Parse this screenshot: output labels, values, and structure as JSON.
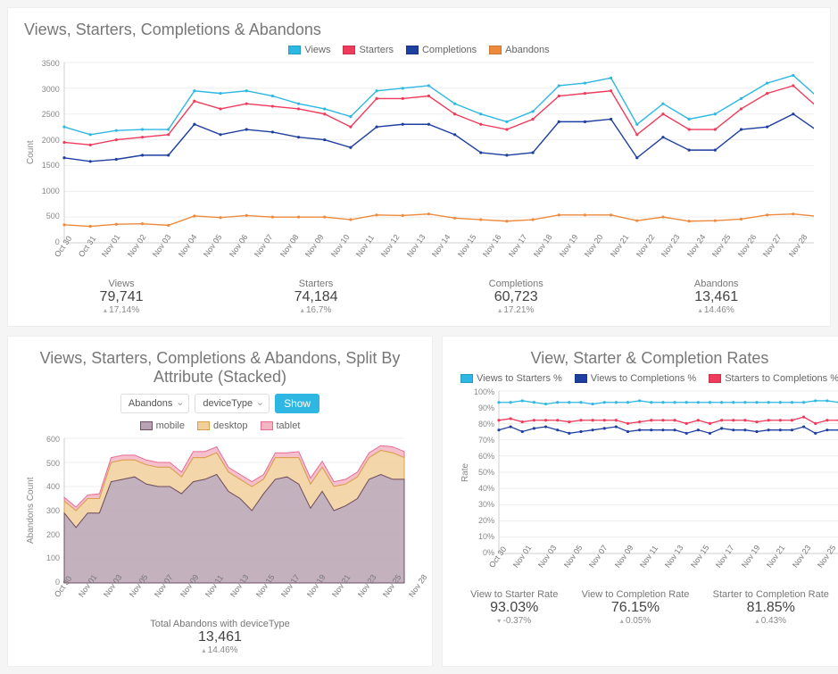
{
  "top_chart": {
    "title": "Views, Starters, Completions & Abandons",
    "type": "line",
    "ylabel": "Count",
    "ylim": [
      0,
      3500
    ],
    "ytick_step": 500,
    "yticks": [
      "0",
      "500",
      "1000",
      "1500",
      "2000",
      "2500",
      "3000",
      "3500"
    ],
    "x_labels": [
      "Oct 30",
      "Oct 31",
      "Nov 01",
      "Nov 02",
      "Nov 03",
      "Nov 04",
      "Nov 05",
      "Nov 06",
      "Nov 07",
      "Nov 08",
      "Nov 09",
      "Nov 10",
      "Nov 11",
      "Nov 12",
      "Nov 13",
      "Nov 14",
      "Nov 15",
      "Nov 16",
      "Nov 17",
      "Nov 18",
      "Nov 19",
      "Nov 20",
      "Nov 21",
      "Nov 22",
      "Nov 23",
      "Nov 24",
      "Nov 25",
      "Nov 26",
      "Nov 27",
      "Nov 28"
    ],
    "series": [
      {
        "name": "Views",
        "color": "#2db7e2",
        "values": [
          2250,
          2100,
          2180,
          2200,
          2200,
          2950,
          2900,
          2950,
          2850,
          2700,
          2600,
          2450,
          2950,
          3000,
          3050,
          2700,
          2500,
          2350,
          2550,
          3050,
          3100,
          3200,
          2300,
          2700,
          2400,
          2500,
          2800,
          3100,
          3250,
          2800
        ]
      },
      {
        "name": "Starters",
        "color": "#ef3b5b",
        "values": [
          1950,
          1900,
          2000,
          2050,
          2100,
          2750,
          2600,
          2700,
          2650,
          2600,
          2500,
          2250,
          2800,
          2800,
          2850,
          2500,
          2300,
          2200,
          2400,
          2850,
          2900,
          2950,
          2100,
          2500,
          2200,
          2200,
          2600,
          2900,
          3050,
          2600
        ]
      },
      {
        "name": "Completions",
        "color": "#1f3fa0",
        "values": [
          1650,
          1580,
          1620,
          1700,
          1700,
          2300,
          2100,
          2200,
          2150,
          2050,
          2000,
          1850,
          2250,
          2300,
          2300,
          2100,
          1750,
          1700,
          1750,
          2350,
          2350,
          2400,
          1650,
          2050,
          1800,
          1800,
          2200,
          2250,
          2500,
          2150
        ]
      },
      {
        "name": "Abandons",
        "color": "#ed8a3d",
        "values": [
          350,
          320,
          360,
          370,
          340,
          520,
          490,
          530,
          500,
          500,
          500,
          450,
          540,
          530,
          560,
          480,
          450,
          420,
          450,
          540,
          540,
          540,
          430,
          500,
          420,
          430,
          460,
          540,
          560,
          510
        ]
      }
    ],
    "line_width": 1.4,
    "background_color": "#ffffff",
    "grid_color": "#eeeeee",
    "stats": [
      {
        "label": "Views",
        "value": "79,741",
        "delta": "17.14%",
        "dir": "up"
      },
      {
        "label": "Starters",
        "value": "74,184",
        "delta": "16.7%",
        "dir": "up"
      },
      {
        "label": "Completions",
        "value": "60,723",
        "delta": "17.21%",
        "dir": "up"
      },
      {
        "label": "Abandons",
        "value": "13,461",
        "delta": "14.46%",
        "dir": "up"
      }
    ]
  },
  "bottom_left": {
    "title": "Views, Starters, Completions & Abandons, Split By Attribute (Stacked)",
    "type": "area_stacked",
    "controls": {
      "metric": "Abandons",
      "attribute": "deviceType",
      "button": "Show"
    },
    "ylabel": "Abandons Count",
    "ylim": [
      0,
      600
    ],
    "ytick_step": 100,
    "yticks": [
      "0",
      "100",
      "200",
      "300",
      "400",
      "500",
      "600"
    ],
    "x_labels": [
      "Oct 30",
      "Nov 01",
      "Nov 03",
      "Nov 05",
      "Nov 07",
      "Nov 09",
      "Nov 11",
      "Nov 13",
      "Nov 15",
      "Nov 17",
      "Nov 19",
      "Nov 21",
      "Nov 23",
      "Nov 25",
      "Nov 28"
    ],
    "x_full": [
      "Oct 30",
      "Oct 31",
      "Nov 01",
      "Nov 02",
      "Nov 03",
      "Nov 04",
      "Nov 05",
      "Nov 06",
      "Nov 07",
      "Nov 08",
      "Nov 09",
      "Nov 10",
      "Nov 11",
      "Nov 12",
      "Nov 13",
      "Nov 14",
      "Nov 15",
      "Nov 16",
      "Nov 17",
      "Nov 18",
      "Nov 19",
      "Nov 20",
      "Nov 21",
      "Nov 22",
      "Nov 23",
      "Nov 24",
      "Nov 25",
      "Nov 26",
      "Nov 27",
      "Nov 28"
    ],
    "series": [
      {
        "name": "mobile",
        "fill": "#b8a3b2",
        "stroke": "#6e4f66",
        "values": [
          290,
          230,
          290,
          290,
          420,
          430,
          440,
          410,
          400,
          400,
          370,
          420,
          430,
          450,
          380,
          350,
          300,
          370,
          430,
          440,
          410,
          310,
          380,
          300,
          320,
          350,
          430,
          450,
          430,
          430
        ]
      },
      {
        "name": "desktop",
        "fill": "#f1cf9b",
        "stroke": "#d9a24a",
        "values": [
          50,
          70,
          60,
          60,
          80,
          80,
          70,
          80,
          80,
          80,
          70,
          100,
          90,
          90,
          80,
          80,
          100,
          60,
          90,
          80,
          110,
          100,
          100,
          100,
          90,
          90,
          90,
          100,
          110,
          90
        ]
      },
      {
        "name": "tablet",
        "fill": "#f3b5c2",
        "stroke": "#e86b95",
        "values": [
          15,
          15,
          15,
          20,
          20,
          20,
          20,
          20,
          20,
          20,
          20,
          25,
          25,
          25,
          20,
          20,
          20,
          20,
          20,
          20,
          25,
          25,
          25,
          20,
          20,
          20,
          20,
          20,
          25,
          25
        ]
      }
    ],
    "stat": {
      "label": "Total Abandons with deviceType",
      "value": "13,461",
      "delta": "14.46%",
      "dir": "up"
    }
  },
  "bottom_right": {
    "title": "View, Starter & Completion Rates",
    "type": "line",
    "ylabel": "Rate",
    "ylim": [
      0,
      100
    ],
    "ytick_step": 10,
    "ysuffix": "%",
    "yticks": [
      "0%",
      "10%",
      "20%",
      "30%",
      "40%",
      "50%",
      "60%",
      "70%",
      "80%",
      "90%",
      "100%"
    ],
    "x_labels": [
      "Oct 30",
      "Nov 01",
      "Nov 03",
      "Nov 05",
      "Nov 07",
      "Nov 09",
      "Nov 11",
      "Nov 13",
      "Nov 15",
      "Nov 17",
      "Nov 19",
      "Nov 21",
      "Nov 23",
      "Nov 25",
      "Nov 28"
    ],
    "series": [
      {
        "name": "Views to Starters %",
        "color": "#2db7e2",
        "values": [
          93,
          93,
          94,
          93,
          92,
          93,
          93,
          93,
          92,
          93,
          93,
          93,
          94,
          93,
          93,
          93,
          93,
          93,
          93,
          93,
          93,
          93,
          93,
          93,
          93,
          93,
          93,
          94,
          94,
          93
        ]
      },
      {
        "name": "Views to Completions %",
        "color": "#1f3fa0",
        "values": [
          76,
          78,
          75,
          77,
          78,
          76,
          74,
          75,
          76,
          77,
          78,
          75,
          76,
          76,
          76,
          76,
          74,
          76,
          74,
          77,
          76,
          76,
          75,
          76,
          76,
          76,
          78,
          74,
          76,
          76
        ]
      },
      {
        "name": "Starters to Completions %",
        "color": "#ef3b5b",
        "values": [
          82,
          83,
          81,
          82,
          82,
          82,
          81,
          82,
          82,
          82,
          82,
          80,
          81,
          82,
          82,
          82,
          80,
          82,
          80,
          82,
          82,
          82,
          81,
          82,
          82,
          82,
          84,
          80,
          82,
          82
        ]
      }
    ],
    "line_width": 1.3,
    "stats": [
      {
        "label": "View to Starter Rate",
        "value": "93.03%",
        "delta": "-0.37%",
        "dir": "down"
      },
      {
        "label": "View to Completion Rate",
        "value": "76.15%",
        "delta": "0.05%",
        "dir": "up"
      },
      {
        "label": "Starter to Completion Rate",
        "value": "81.85%",
        "delta": "0.43%",
        "dir": "up"
      }
    ]
  }
}
